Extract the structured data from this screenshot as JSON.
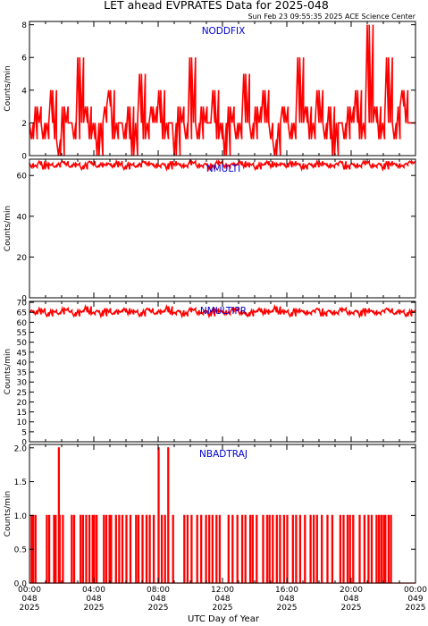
{
  "title": "LET ahead EVPRATES Data for 2025-048",
  "timestamp": "Sun Feb 23 09:55:35 2025 ACE Science Center",
  "xlabel": "UTC Day of Year",
  "colors": {
    "data": "#ff0000",
    "panel_label": "#0000cc",
    "axes": "#000000"
  },
  "x_ticks": [
    {
      "t": "00:00",
      "d": "048",
      "y": "2025"
    },
    {
      "t": "04:00",
      "d": "048",
      "y": "2025"
    },
    {
      "t": "08:00",
      "d": "048",
      "y": "2025"
    },
    {
      "t": "12:00",
      "d": "048",
      "y": "2025"
    },
    {
      "t": "16:00",
      "d": "048",
      "y": "2025"
    },
    {
      "t": "20:00",
      "d": "048",
      "y": "2025"
    },
    {
      "t": "00:00",
      "d": "049",
      "y": "2025"
    }
  ],
  "chart_data": [
    {
      "type": "line",
      "panel_label": "NODDFIX",
      "ylabel": "Counts/min",
      "ylim": [
        0,
        8.2
      ],
      "yticks": [
        0,
        2,
        4,
        6,
        8
      ],
      "xlim_hours": [
        0,
        24
      ],
      "description_of_series": "per-minute counts fluctuating 0-6, occasional 8",
      "sample_values": [
        2,
        1,
        3,
        2,
        1,
        2,
        4,
        1,
        0,
        3,
        2,
        2,
        1,
        6,
        2,
        3,
        1,
        2,
        0,
        2,
        3,
        4,
        1,
        2,
        2,
        1,
        3,
        0,
        2,
        5,
        1,
        2,
        3,
        2,
        4,
        1,
        2,
        2,
        0,
        3,
        2,
        1,
        6,
        2,
        1,
        3,
        2,
        2,
        4,
        1,
        2,
        0,
        3,
        2,
        1,
        2,
        5,
        2,
        1,
        3,
        2,
        4,
        2,
        1,
        0,
        2,
        3,
        2,
        1,
        2,
        6,
        2,
        3,
        1,
        2,
        4,
        2,
        1,
        3,
        0,
        2,
        2,
        1,
        3,
        2,
        4,
        1,
        2,
        8,
        2,
        3,
        1,
        2,
        6,
        2,
        1,
        3,
        4,
        2,
        2
      ]
    },
    {
      "type": "line",
      "panel_label": "NMULTI",
      "ylabel": "Counts/min",
      "ylim": [
        0,
        68
      ],
      "yticks": [
        0,
        20,
        40,
        60
      ],
      "xlim_hours": [
        0,
        24
      ],
      "description_of_series": "counts near 65 throughout",
      "sample_values": [
        66,
        64,
        65,
        67,
        63,
        66,
        65,
        64,
        66,
        67,
        65,
        64,
        66,
        65,
        63,
        66,
        67,
        65,
        64,
        66,
        65,
        66,
        64,
        67,
        65,
        63,
        66,
        65,
        64,
        66,
        67,
        65,
        66,
        64,
        65,
        66,
        63,
        67,
        65,
        66,
        64,
        65,
        67,
        66,
        64,
        65,
        66,
        63,
        65,
        67,
        66,
        64,
        65,
        66,
        65,
        67,
        64,
        66,
        65,
        63,
        66,
        65,
        67,
        64,
        66,
        65,
        66,
        64,
        67,
        65,
        66,
        63,
        65,
        66,
        64,
        67,
        65,
        66,
        64,
        65,
        66,
        67,
        63,
        65,
        66,
        64,
        65,
        67,
        66,
        64,
        65,
        66,
        63,
        67,
        65,
        66,
        64,
        65,
        66,
        67
      ]
    },
    {
      "type": "line",
      "panel_label": "NMULTIPR",
      "ylabel": "Counts/min",
      "ylim": [
        0,
        70.5
      ],
      "yticks": [
        0,
        5,
        10,
        15,
        20,
        25,
        30,
        35,
        40,
        45,
        50,
        55,
        60,
        65,
        70
      ],
      "xlim_hours": [
        0,
        24
      ],
      "description_of_series": "counts near 65 throughout",
      "sample_values": [
        65,
        66,
        64,
        67,
        65,
        63,
        66,
        65,
        64,
        67,
        66,
        65,
        63,
        66,
        65,
        68,
        64,
        65,
        66,
        63,
        67,
        65,
        64,
        66,
        65,
        67,
        64,
        66,
        65,
        63,
        66,
        67,
        65,
        64,
        66,
        65,
        68,
        64,
        65,
        66,
        63,
        65,
        67,
        66,
        64,
        65,
        66,
        63,
        67,
        65,
        66,
        64,
        65,
        67,
        66,
        64,
        65,
        63,
        66,
        65,
        67,
        64,
        66,
        65,
        68,
        64,
        66,
        65,
        63,
        67,
        65,
        66,
        64,
        65,
        66,
        67,
        63,
        65,
        66,
        64,
        65,
        67,
        66,
        64,
        65,
        66,
        63,
        67,
        65,
        66,
        64,
        65,
        66,
        67,
        65,
        64,
        66,
        65,
        63,
        66
      ]
    },
    {
      "type": "line",
      "panel_label": "NBADTRAJ",
      "ylabel": "Counts/min",
      "ylim": [
        0,
        2.05
      ],
      "yticks": [
        0.0,
        0.5,
        1.0,
        1.5,
        2.0
      ],
      "xlim_hours": [
        0,
        24
      ],
      "spikes_to_2_hours": [
        1.8,
        8.0,
        8.6
      ],
      "spikes_to_1_hours": [
        0.1,
        0.2,
        0.35,
        1.05,
        1.2,
        1.5,
        1.6,
        1.85,
        2.05,
        2.6,
        2.75,
        3.15,
        3.3,
        3.5,
        3.7,
        3.9,
        4.0,
        4.15,
        4.6,
        4.75,
        4.95,
        5.05,
        5.35,
        5.55,
        5.75,
        6.0,
        6.25,
        6.6,
        6.75,
        7.0,
        7.25,
        7.45,
        7.7,
        8.2,
        8.4,
        8.9,
        9.6,
        9.8,
        10.05,
        10.4,
        10.65,
        10.95,
        11.15,
        11.35,
        11.6,
        11.8,
        12.35,
        12.6,
        12.9,
        13.2,
        13.4,
        13.7,
        13.85,
        14.1,
        14.5,
        14.75,
        14.9,
        15.1,
        15.35,
        15.55,
        15.8,
        16.0,
        16.35,
        16.55,
        16.8,
        17.1,
        17.45,
        17.65,
        17.85,
        18.15,
        18.5,
        18.8,
        19.3,
        19.5,
        19.75,
        19.9,
        20.1,
        20.5,
        20.8,
        21.05,
        21.25,
        21.55,
        21.7,
        21.85,
        22.0,
        22.1,
        22.3,
        22.45
      ]
    }
  ]
}
